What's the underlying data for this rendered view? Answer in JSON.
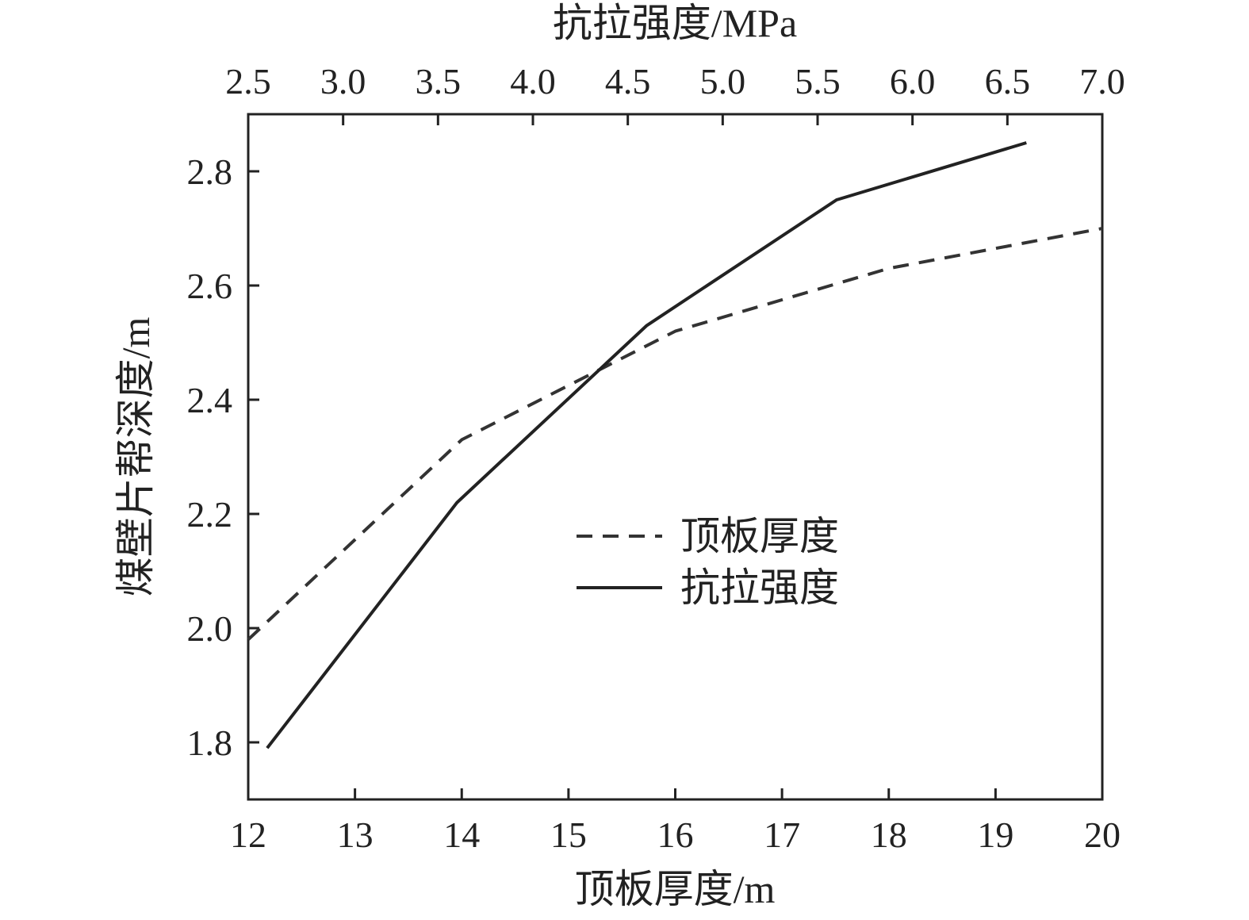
{
  "chart_data": {
    "type": "line",
    "xlabel": "顶板厚度/m",
    "x2label": "抗拉强度/MPa",
    "ylabel": "煤壁片帮深度/m",
    "xlim": [
      12,
      20
    ],
    "x2lim": [
      2.5,
      7.0
    ],
    "ylim": [
      1.7,
      2.9
    ],
    "x_ticks": [
      "12",
      "13",
      "14",
      "15",
      "16",
      "17",
      "18",
      "19",
      "20"
    ],
    "x2_ticks": [
      "2.5",
      "3.0",
      "3.5",
      "4.0",
      "4.5",
      "5.0",
      "5.5",
      "6.0",
      "6.5",
      "7.0"
    ],
    "y_ticks": [
      "1.8",
      "2.0",
      "2.2",
      "2.4",
      "2.6",
      "2.8"
    ],
    "legend_position": "center-right",
    "series": [
      {
        "name": "顶板厚度",
        "axis": "bottom",
        "style": "dashed",
        "color": "#333333",
        "x": [
          12,
          14,
          16,
          18,
          20
        ],
        "y": [
          1.98,
          2.33,
          2.52,
          2.63,
          2.7
        ]
      },
      {
        "name": "抗拉强度",
        "axis": "top",
        "style": "solid",
        "color": "#222222",
        "x": [
          2.6,
          3.6,
          4.6,
          5.6,
          6.6
        ],
        "y": [
          1.79,
          2.22,
          2.53,
          2.75,
          2.85
        ]
      }
    ]
  }
}
